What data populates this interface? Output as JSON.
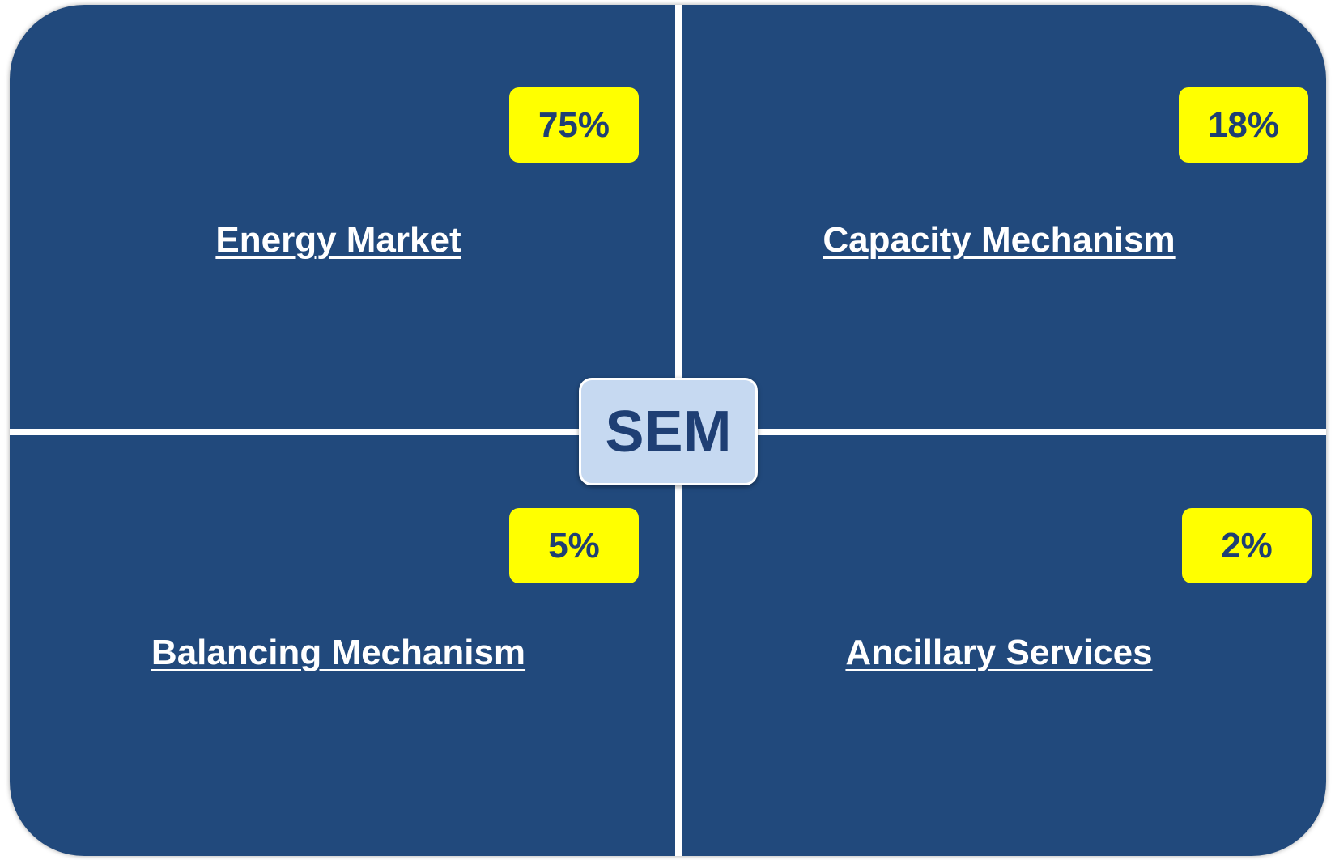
{
  "center": "SEM",
  "quadrants": [
    {
      "label": "Energy Market",
      "share": "75%"
    },
    {
      "label": "Capacity Mechanism",
      "share": "18%"
    },
    {
      "label": "Balancing Mechanism",
      "share": "5%"
    },
    {
      "label": "Ancillary Services",
      "share": "2%"
    }
  ]
}
